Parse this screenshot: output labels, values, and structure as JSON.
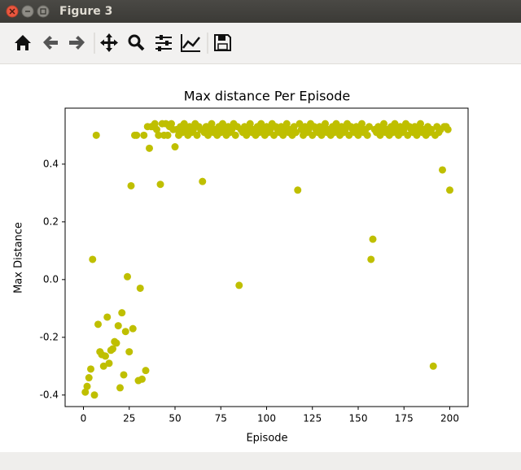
{
  "window": {
    "title": "Figure 3"
  },
  "chart_data": {
    "type": "scatter",
    "title": "Max distance Per Episode",
    "x_label": "Episode",
    "y_label": "Max Distance",
    "color": "#bfbf00",
    "x": [
      1,
      2,
      3,
      4,
      5,
      6,
      7,
      8,
      9,
      10,
      11,
      12,
      13,
      14,
      15,
      16,
      17,
      18,
      19,
      20,
      21,
      22,
      23,
      24,
      25,
      26,
      27,
      28,
      29,
      30,
      31,
      32,
      33,
      34,
      35,
      36,
      37,
      38,
      39,
      40,
      41,
      42,
      43,
      44,
      45,
      46,
      47,
      48,
      49,
      50,
      51,
      52,
      53,
      54,
      55,
      56,
      57,
      58,
      59,
      60,
      61,
      62,
      63,
      64,
      65,
      66,
      67,
      68,
      69,
      70,
      71,
      72,
      73,
      74,
      75,
      76,
      77,
      78,
      79,
      80,
      81,
      82,
      83,
      84,
      85,
      86,
      87,
      88,
      89,
      90,
      91,
      92,
      93,
      94,
      95,
      96,
      97,
      98,
      99,
      100,
      101,
      102,
      103,
      104,
      105,
      106,
      107,
      108,
      109,
      110,
      111,
      112,
      113,
      114,
      115,
      116,
      117,
      118,
      119,
      120,
      121,
      122,
      123,
      124,
      125,
      126,
      127,
      128,
      129,
      130,
      131,
      132,
      133,
      134,
      135,
      136,
      137,
      138,
      139,
      140,
      141,
      142,
      143,
      144,
      145,
      146,
      147,
      148,
      149,
      150,
      151,
      152,
      153,
      154,
      155,
      156,
      157,
      158,
      159,
      160,
      161,
      162,
      163,
      164,
      165,
      166,
      167,
      168,
      169,
      170,
      171,
      172,
      173,
      174,
      175,
      176,
      177,
      178,
      179,
      180,
      181,
      182,
      183,
      184,
      185,
      186,
      187,
      188,
      189,
      190,
      191,
      192,
      193,
      194,
      195,
      196,
      197,
      198,
      199,
      200
    ],
    "values": [
      -0.39,
      -0.37,
      -0.34,
      -0.31,
      0.07,
      -0.4,
      0.5,
      -0.155,
      -0.25,
      -0.26,
      -0.3,
      -0.265,
      -0.13,
      -0.29,
      -0.245,
      -0.24,
      -0.215,
      -0.22,
      -0.16,
      -0.375,
      -0.115,
      -0.33,
      -0.18,
      0.01,
      -0.25,
      0.325,
      -0.17,
      0.5,
      0.5,
      -0.35,
      -0.03,
      -0.345,
      0.5,
      -0.315,
      0.53,
      0.455,
      0.53,
      0.53,
      0.54,
      0.52,
      0.5,
      0.33,
      0.54,
      0.5,
      0.54,
      0.5,
      0.53,
      0.54,
      0.52,
      0.46,
      0.52,
      0.5,
      0.53,
      0.51,
      0.54,
      0.52,
      0.5,
      0.53,
      0.51,
      0.52,
      0.54,
      0.5,
      0.53,
      0.52,
      0.34,
      0.51,
      0.53,
      0.5,
      0.52,
      0.54,
      0.51,
      0.52,
      0.5,
      0.53,
      0.51,
      0.54,
      0.52,
      0.5,
      0.53,
      0.51,
      0.52,
      0.54,
      0.5,
      0.53,
      -0.02,
      0.52,
      0.51,
      0.53,
      0.5,
      0.52,
      0.54,
      0.51,
      0.52,
      0.5,
      0.53,
      0.51,
      0.54,
      0.52,
      0.5,
      0.53,
      0.51,
      0.52,
      0.54,
      0.5,
      0.53,
      0.52,
      0.51,
      0.53,
      0.5,
      0.52,
      0.54,
      0.51,
      0.52,
      0.5,
      0.53,
      0.51,
      0.31,
      0.54,
      0.52,
      0.5,
      0.53,
      0.51,
      0.52,
      0.54,
      0.5,
      0.53,
      0.52,
      0.51,
      0.53,
      0.5,
      0.52,
      0.54,
      0.51,
      0.52,
      0.5,
      0.53,
      0.51,
      0.54,
      0.52,
      0.5,
      0.53,
      0.51,
      0.52,
      0.54,
      0.5,
      0.53,
      0.52,
      0.51,
      0.53,
      0.5,
      0.52,
      0.54,
      0.51,
      0.52,
      0.5,
      0.53,
      0.07,
      0.14,
      0.52,
      0.51,
      0.53,
      0.5,
      0.52,
      0.54,
      0.51,
      0.52,
      0.5,
      0.53,
      0.51,
      0.54,
      0.52,
      0.5,
      0.53,
      0.51,
      0.52,
      0.54,
      0.5,
      0.53,
      0.52,
      0.51,
      0.53,
      0.5,
      0.52,
      0.54,
      0.51,
      0.52,
      0.5,
      0.53,
      0.51,
      0.52,
      -0.3,
      0.5,
      0.53,
      0.51,
      0.52,
      0.38,
      0.53,
      0.53,
      0.52,
      0.31
    ],
    "xlim": [
      -10,
      210
    ],
    "ylim": [
      -0.44,
      0.594
    ],
    "xticks": [
      0,
      25,
      50,
      75,
      100,
      125,
      150,
      175,
      200
    ],
    "yticks": [
      -0.4,
      -0.2,
      {
        "value": 0,
        "label": "0.0"
      },
      0.2,
      0.4
    ]
  }
}
